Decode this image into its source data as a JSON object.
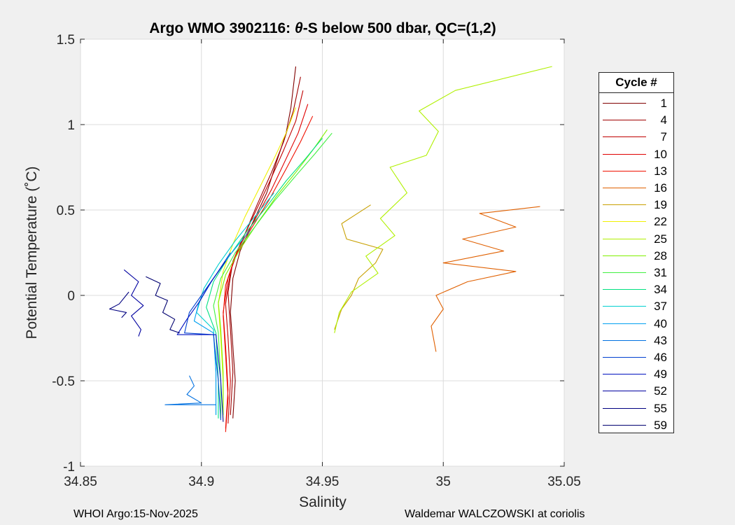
{
  "chart_data": {
    "type": "line",
    "title_prefix": "Argo WMO 3902116: ",
    "title_theta": "θ",
    "title_suffix": "-S below 500 dbar,  QC=(1,2)",
    "xlabel": "Salinity",
    "ylabel": "Potential Temperature (˚C)",
    "xlim": [
      34.85,
      35.05
    ],
    "ylim": [
      -1,
      1.5
    ],
    "xticks": [
      34.85,
      34.9,
      34.95,
      35,
      35.05
    ],
    "xtick_labels": [
      "34.85",
      "34.9",
      "34.95",
      "35",
      "35.05"
    ],
    "yticks": [
      -1,
      -0.5,
      0,
      0.5,
      1,
      1.5
    ],
    "ytick_labels": [
      "-1",
      "-0.5",
      "0",
      "0.5",
      "1",
      "1.5"
    ],
    "grid": true,
    "legend_title": "Cycle #",
    "legend_location": "outside-right",
    "series": [
      {
        "name": "1",
        "color": "#800000",
        "points": [
          [
            34.939,
            1.34
          ],
          [
            34.937,
            1.1
          ],
          [
            34.935,
            0.95
          ],
          [
            34.931,
            0.78
          ],
          [
            34.927,
            0.6
          ],
          [
            34.921,
            0.42
          ],
          [
            34.916,
            0.26
          ],
          [
            34.913,
            0.1
          ],
          [
            34.912,
            -0.1
          ],
          [
            34.913,
            -0.3
          ],
          [
            34.914,
            -0.5
          ],
          [
            34.913,
            -0.72
          ]
        ]
      },
      {
        "name": "4",
        "color": "#a00000",
        "points": [
          [
            34.941,
            1.28
          ],
          [
            34.938,
            1.08
          ],
          [
            34.934,
            0.9
          ],
          [
            34.929,
            0.72
          ],
          [
            34.923,
            0.53
          ],
          [
            34.918,
            0.36
          ],
          [
            34.913,
            0.2
          ],
          [
            34.911,
            0.02
          ],
          [
            34.912,
            -0.2
          ],
          [
            34.913,
            -0.45
          ],
          [
            34.912,
            -0.7
          ]
        ]
      },
      {
        "name": "7",
        "color": "#c00000",
        "points": [
          [
            34.942,
            1.2
          ],
          [
            34.939,
            1.02
          ],
          [
            34.934,
            0.85
          ],
          [
            34.928,
            0.66
          ],
          [
            34.922,
            0.48
          ],
          [
            34.916,
            0.3
          ],
          [
            34.912,
            0.14
          ],
          [
            34.91,
            -0.05
          ],
          [
            34.911,
            -0.25
          ],
          [
            34.912,
            -0.5
          ],
          [
            34.911,
            -0.75
          ]
        ]
      },
      {
        "name": "10",
        "color": "#e00000",
        "points": [
          [
            34.944,
            1.12
          ],
          [
            34.94,
            0.95
          ],
          [
            34.935,
            0.8
          ],
          [
            34.929,
            0.62
          ],
          [
            34.922,
            0.44
          ],
          [
            34.915,
            0.27
          ],
          [
            34.911,
            0.1
          ],
          [
            34.909,
            -0.1
          ],
          [
            34.91,
            -0.3
          ],
          [
            34.911,
            -0.55
          ],
          [
            34.91,
            -0.78
          ]
        ]
      },
      {
        "name": "13",
        "color": "#f01000",
        "points": [
          [
            34.946,
            1.05
          ],
          [
            34.941,
            0.9
          ],
          [
            34.935,
            0.74
          ],
          [
            34.928,
            0.56
          ],
          [
            34.921,
            0.4
          ],
          [
            34.914,
            0.23
          ],
          [
            34.91,
            0.06
          ],
          [
            34.909,
            -0.12
          ],
          [
            34.91,
            -0.35
          ],
          [
            34.911,
            -0.6
          ],
          [
            34.91,
            -0.8
          ]
        ]
      },
      {
        "name": "16",
        "color": "#e06000",
        "points": [
          [
            35.04,
            0.52
          ],
          [
            35.015,
            0.48
          ],
          [
            35.03,
            0.4
          ],
          [
            35.008,
            0.33
          ],
          [
            35.025,
            0.26
          ],
          [
            35.0,
            0.19
          ],
          [
            35.03,
            0.14
          ],
          [
            35.01,
            0.08
          ],
          [
            34.997,
            0.0
          ],
          [
            35.0,
            -0.08
          ],
          [
            34.995,
            -0.18
          ],
          [
            34.997,
            -0.33
          ]
        ]
      },
      {
        "name": "19",
        "color": "#c8a000",
        "points": [
          [
            34.97,
            0.53
          ],
          [
            34.958,
            0.42
          ],
          [
            34.96,
            0.33
          ],
          [
            34.975,
            0.27
          ],
          [
            34.972,
            0.19
          ],
          [
            34.965,
            0.1
          ],
          [
            34.962,
            0.0
          ],
          [
            34.958,
            -0.08
          ],
          [
            34.955,
            -0.2
          ]
        ]
      },
      {
        "name": "22",
        "color": "#f0f000",
        "points": [
          [
            34.939,
            1.1
          ],
          [
            34.935,
            0.95
          ],
          [
            34.93,
            0.8
          ],
          [
            34.924,
            0.63
          ],
          [
            34.918,
            0.46
          ],
          [
            34.913,
            0.3
          ],
          [
            34.909,
            0.14
          ],
          [
            34.907,
            -0.05
          ],
          [
            34.908,
            -0.25
          ],
          [
            34.909,
            -0.5
          ],
          [
            34.909,
            -0.74
          ]
        ]
      },
      {
        "name": "25",
        "color": "#b0f000",
        "points": [
          [
            35.045,
            1.34
          ],
          [
            35.005,
            1.2
          ],
          [
            34.99,
            1.08
          ],
          [
            34.998,
            0.96
          ],
          [
            34.993,
            0.82
          ],
          [
            34.978,
            0.75
          ],
          [
            34.985,
            0.6
          ],
          [
            34.974,
            0.45
          ],
          [
            34.98,
            0.35
          ],
          [
            34.968,
            0.23
          ],
          [
            34.973,
            0.13
          ],
          [
            34.962,
            0.02
          ],
          [
            34.957,
            -0.1
          ],
          [
            34.955,
            -0.22
          ]
        ]
      },
      {
        "name": "28",
        "color": "#80f000",
        "points": [
          [
            34.952,
            0.97
          ],
          [
            34.946,
            0.85
          ],
          [
            34.939,
            0.72
          ],
          [
            34.931,
            0.58
          ],
          [
            34.923,
            0.42
          ],
          [
            34.916,
            0.27
          ],
          [
            34.91,
            0.12
          ],
          [
            34.907,
            -0.04
          ],
          [
            34.908,
            -0.2
          ],
          [
            34.909,
            -0.45
          ],
          [
            34.909,
            -0.7
          ]
        ]
      },
      {
        "name": "31",
        "color": "#40f040",
        "points": [
          [
            34.954,
            0.95
          ],
          [
            34.947,
            0.83
          ],
          [
            34.939,
            0.7
          ],
          [
            34.93,
            0.55
          ],
          [
            34.922,
            0.4
          ],
          [
            34.914,
            0.25
          ],
          [
            34.908,
            0.1
          ],
          [
            34.905,
            -0.06
          ],
          [
            34.907,
            -0.22
          ],
          [
            34.908,
            -0.5
          ],
          [
            34.908,
            -0.72
          ]
        ]
      },
      {
        "name": "34",
        "color": "#00e080",
        "points": [
          [
            34.95,
            0.92
          ],
          [
            34.943,
            0.8
          ],
          [
            34.935,
            0.67
          ],
          [
            34.927,
            0.52
          ],
          [
            34.919,
            0.38
          ],
          [
            34.911,
            0.22
          ],
          [
            34.905,
            0.08
          ],
          [
            34.902,
            -0.07
          ],
          [
            34.906,
            -0.22
          ],
          [
            34.907,
            -0.5
          ],
          [
            34.907,
            -0.72
          ]
        ]
      },
      {
        "name": "37",
        "color": "#00d0d0",
        "points": [
          [
            34.93,
            0.6
          ],
          [
            34.922,
            0.46
          ],
          [
            34.914,
            0.32
          ],
          [
            34.907,
            0.18
          ],
          [
            34.901,
            0.04
          ],
          [
            34.898,
            -0.1
          ],
          [
            34.905,
            -0.2
          ],
          [
            34.906,
            -0.45
          ],
          [
            34.906,
            -0.7
          ]
        ]
      },
      {
        "name": "40",
        "color": "#00a0f0",
        "points": [
          [
            34.92,
            0.38
          ],
          [
            34.912,
            0.24
          ],
          [
            34.905,
            0.1
          ],
          [
            34.899,
            -0.04
          ],
          [
            34.897,
            -0.15
          ],
          [
            34.905,
            -0.22
          ],
          [
            34.906,
            -0.45
          ],
          [
            34.906,
            -0.7
          ]
        ]
      },
      {
        "name": "43",
        "color": "#0070e0",
        "points": [
          [
            34.895,
            -0.47
          ],
          [
            34.897,
            -0.53
          ],
          [
            34.894,
            -0.58
          ],
          [
            34.9,
            -0.63
          ],
          [
            34.885,
            -0.64
          ],
          [
            34.906,
            -0.64
          ]
        ]
      },
      {
        "name": "46",
        "color": "#0040d0",
        "points": [
          [
            34.912,
            0.25
          ],
          [
            34.906,
            0.12
          ],
          [
            34.9,
            0.0
          ],
          [
            34.895,
            -0.1
          ],
          [
            34.893,
            -0.22
          ],
          [
            34.905,
            -0.23
          ],
          [
            34.907,
            -0.5
          ],
          [
            34.908,
            -0.73
          ]
        ]
      },
      {
        "name": "49",
        "color": "#0010c0",
        "points": [
          [
            34.91,
            0.2
          ],
          [
            34.904,
            0.08
          ],
          [
            34.899,
            -0.04
          ],
          [
            34.894,
            -0.14
          ],
          [
            34.89,
            -0.23
          ],
          [
            34.906,
            -0.23
          ],
          [
            34.908,
            -0.5
          ],
          [
            34.909,
            -0.74
          ]
        ]
      },
      {
        "name": "52",
        "color": "#0000a0",
        "points": [
          [
            34.868,
            0.15
          ],
          [
            34.874,
            0.08
          ],
          [
            34.871,
            0.0
          ],
          [
            34.876,
            -0.06
          ],
          [
            34.871,
            -0.12
          ],
          [
            34.875,
            -0.2
          ],
          [
            34.874,
            -0.24
          ]
        ]
      },
      {
        "name": "55",
        "color": "#000080",
        "points": [
          [
            34.87,
            0.02
          ],
          [
            34.866,
            -0.05
          ],
          [
            34.862,
            -0.08
          ],
          [
            34.869,
            -0.1
          ],
          [
            34.867,
            -0.13
          ]
        ]
      },
      {
        "name": "59",
        "color": "#000070",
        "points": [
          [
            34.877,
            0.11
          ],
          [
            34.883,
            0.07
          ],
          [
            34.881,
            0.0
          ],
          [
            34.886,
            -0.03
          ],
          [
            34.884,
            -0.1
          ],
          [
            34.889,
            -0.14
          ],
          [
            34.887,
            -0.2
          ],
          [
            34.891,
            -0.22
          ]
        ]
      }
    ]
  },
  "footer": {
    "left": "WHOI Argo:15-Nov-2025",
    "right": "Waldemar WALCZOWSKI at coriolis"
  }
}
